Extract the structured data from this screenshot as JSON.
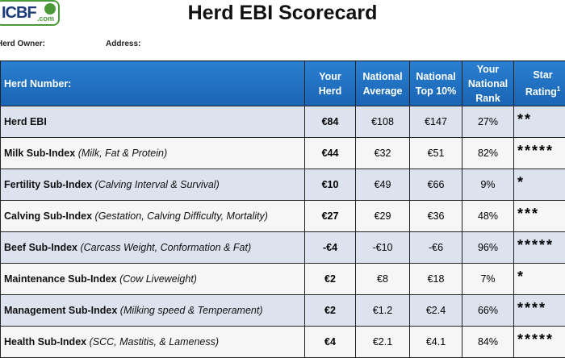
{
  "header": {
    "logo": {
      "name": "ICBF",
      "suffix": ".com"
    },
    "title": "Herd EBI Scorecard",
    "owner_label": "Herd Owner:",
    "address_label": "Address:"
  },
  "table": {
    "columns": [
      {
        "label": "Herd Number:"
      },
      {
        "label": "Your Herd"
      },
      {
        "label": "National Average"
      },
      {
        "label": "National Top 10%"
      },
      {
        "label": "Your National Rank"
      },
      {
        "label": "Star Rating",
        "footnote": "1"
      }
    ],
    "rows": [
      {
        "name": "Herd EBI",
        "detail": null,
        "cells": [
          "€84",
          "€108",
          "€147",
          "27%",
          "**"
        ]
      },
      {
        "name": "Milk Sub-Index",
        "detail": "(Milk, Fat & Protein)",
        "cells": [
          "€44",
          "€32",
          "€51",
          "82%",
          "*****"
        ]
      },
      {
        "name": "Fertility Sub-Index",
        "detail": "(Calving Interval & Survival)",
        "cells": [
          "€10",
          "€49",
          "€66",
          "9%",
          "*"
        ]
      },
      {
        "name": "Calving Sub-Index",
        "detail": "(Gestation, Calving Difficulty, Mortality)",
        "cells": [
          "€27",
          "€29",
          "€36",
          "48%",
          "***"
        ]
      },
      {
        "name": "Beef Sub-Index",
        "detail": "(Carcass Weight, Conformation & Fat)",
        "cells": [
          "-€4",
          "-€10",
          "-€6",
          "96%",
          "*****"
        ]
      },
      {
        "name": "Maintenance Sub-Index",
        "detail": "(Cow Liveweight)",
        "cells": [
          "€2",
          "€8",
          "€18",
          "7%",
          "*"
        ]
      },
      {
        "name": "Management Sub-Index",
        "detail": "(Milking speed & Temperament)",
        "cells": [
          "€2",
          "€1.2",
          "€2.4",
          "66%",
          "****"
        ]
      },
      {
        "name": "Health Sub-Index",
        "detail": "(SCC, Mastitis, & Lameness)",
        "cells": [
          "€4",
          "€2.1",
          "€4.1",
          "84%",
          "*****"
        ]
      }
    ]
  }
}
